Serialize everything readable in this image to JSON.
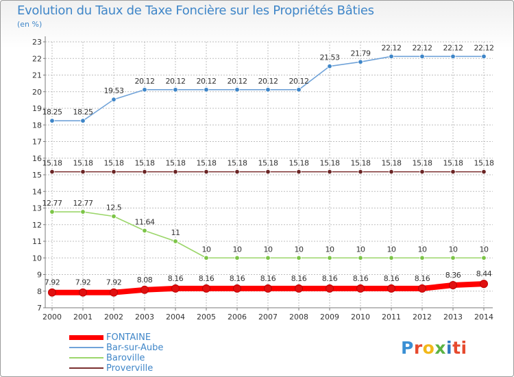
{
  "header": {
    "title": "Evolution du Taux de Taxe Foncière sur les Propriétés Bâties",
    "unit": "(en %)"
  },
  "logo": {
    "text": "Proxiti",
    "letters": [
      "P",
      "r",
      "o",
      "x",
      "i",
      "ti"
    ]
  },
  "colors": {
    "grid": "#bdbdbd",
    "axis": "#7a7a7a",
    "text": "#333333",
    "title": "#3f86c8",
    "background": "#ffffff"
  },
  "chart_data": {
    "type": "line",
    "title": "Evolution du Taux de Taxe Foncière sur les Propriétés Bâties",
    "ylabel": "(en %)",
    "xlabel": "",
    "ylim": [
      7,
      23
    ],
    "yticks": [
      7,
      8,
      9,
      10,
      11,
      12,
      13,
      14,
      15,
      16,
      17,
      18,
      19,
      20,
      21,
      22,
      23
    ],
    "grid": true,
    "legend": "bottom-left",
    "categories": [
      "2000",
      "2001",
      "2002",
      "2003",
      "2004",
      "2005",
      "2006",
      "2007",
      "2008",
      "2009",
      "2010",
      "2011",
      "2012",
      "2013",
      "2014"
    ],
    "series": [
      {
        "name": "FONTAINE",
        "color": "#ff0000",
        "marker": "#e01010",
        "thick": true,
        "values": [
          7.92,
          7.92,
          7.92,
          8.08,
          8.16,
          8.16,
          8.16,
          8.16,
          8.16,
          8.16,
          8.16,
          8.16,
          8.16,
          8.36,
          8.44
        ],
        "labels": [
          "7.92",
          "7.92",
          "7.92",
          "8.08",
          "8.16",
          "8.16",
          "8.16",
          "8.16",
          "8.16",
          "8.16",
          "8.16",
          "8.16",
          "8.16",
          "8.36",
          "8.44"
        ]
      },
      {
        "name": "Bar-sur-Aube",
        "color": "#6fa2d8",
        "marker": "#3f86c8",
        "thick": false,
        "values": [
          18.25,
          18.25,
          19.53,
          20.12,
          20.12,
          20.12,
          20.12,
          20.12,
          20.12,
          21.53,
          21.79,
          22.12,
          22.12,
          22.12,
          22.12
        ],
        "labels": [
          "18.25",
          "18.25",
          "19.53",
          "20.12",
          "20.12",
          "20.12",
          "20.12",
          "20.12",
          "20.12",
          "21.53",
          "21.79",
          "22.12",
          "22.12",
          "22.12",
          "22.12"
        ]
      },
      {
        "name": "Baroville",
        "color": "#9bd66a",
        "marker": "#7cc447",
        "thick": false,
        "values": [
          12.77,
          12.77,
          12.5,
          11.64,
          11,
          10,
          10,
          10,
          10,
          10,
          10,
          10,
          10,
          10,
          10
        ],
        "labels": [
          "12.77",
          "12.77",
          "12.5",
          "11.64",
          "11",
          "10",
          "10",
          "10",
          "10",
          "10",
          "10",
          "10",
          "10",
          "10",
          "10"
        ]
      },
      {
        "name": "Proverville",
        "color": "#7a2f2f",
        "marker": "#6a2424",
        "thick": false,
        "values": [
          15.18,
          15.18,
          15.18,
          15.18,
          15.18,
          15.18,
          15.18,
          15.18,
          15.18,
          15.18,
          15.18,
          15.18,
          15.18,
          15.18,
          15.18
        ],
        "labels": [
          "15.18",
          "15.18",
          "15.18",
          "15.18",
          "15.18",
          "15.18",
          "15.18",
          "15.18",
          "15.18",
          "15.18",
          "15.18",
          "15.18",
          "15.18",
          "15.18",
          "15.18"
        ]
      }
    ]
  }
}
